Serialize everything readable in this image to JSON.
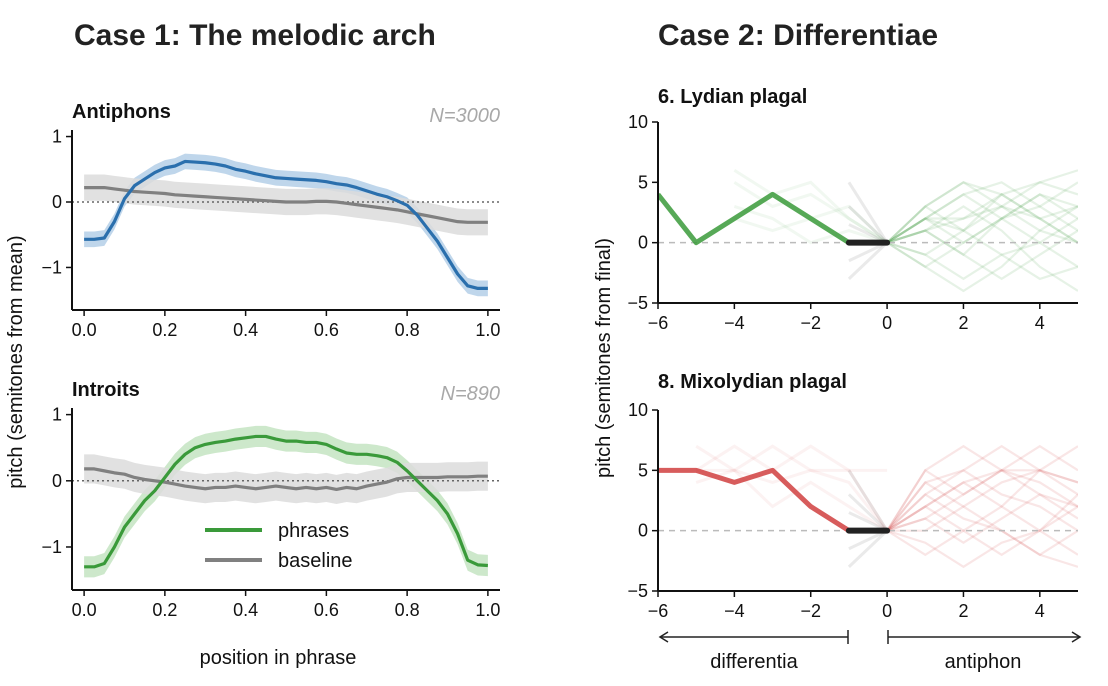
{
  "figure": {
    "case1_title": "Case 1: The melodic arch",
    "case2_title": "Case 2: Differentiae",
    "case1_ylabel": "pitch (semitones from mean)",
    "case1_xlabel": "position in phrase",
    "case2_ylabel": "pitch (semitones from final)",
    "span_differentia": "differentia",
    "span_antiphon": "antiphon"
  },
  "colors": {
    "blue": "#2a6fad",
    "blue_band": "#b4cfe8",
    "green": "#3a9a3a",
    "green_band": "#c4e4c2",
    "gray": "#808080",
    "gray_band": "#dcdcdc",
    "red": "#d04040",
    "black": "#222222"
  },
  "chart_data": [
    {
      "id": "antiphons",
      "type": "line",
      "title": "Antiphons",
      "annotation": "N=3000",
      "xlim": [
        -0.03,
        1.03
      ],
      "ylim": [
        -1.65,
        1.1
      ],
      "xticks": [
        0.0,
        0.2,
        0.4,
        0.6,
        0.8,
        1.0
      ],
      "xtick_labels": [
        "0.0",
        "0.2",
        "0.4",
        "0.6",
        "0.8",
        "1.0"
      ],
      "yticks": [
        1,
        0,
        -1
      ],
      "ytick_labels": [
        "1",
        "0",
        "−1"
      ],
      "reference_line": 0,
      "x": [
        0.0,
        0.025,
        0.05,
        0.075,
        0.1,
        0.125,
        0.15,
        0.175,
        0.2,
        0.225,
        0.25,
        0.275,
        0.3,
        0.325,
        0.35,
        0.375,
        0.4,
        0.425,
        0.45,
        0.475,
        0.5,
        0.525,
        0.55,
        0.575,
        0.6,
        0.625,
        0.65,
        0.675,
        0.7,
        0.725,
        0.75,
        0.775,
        0.8,
        0.825,
        0.85,
        0.875,
        0.9,
        0.925,
        0.95,
        0.975,
        1.0
      ],
      "series": [
        {
          "name": "phrases",
          "color_key": "blue",
          "band_color_key": "blue_band",
          "band_width": 0.12,
          "values": [
            -0.57,
            -0.57,
            -0.55,
            -0.3,
            0.05,
            0.25,
            0.35,
            0.45,
            0.52,
            0.55,
            0.62,
            0.61,
            0.6,
            0.58,
            0.55,
            0.5,
            0.47,
            0.43,
            0.4,
            0.37,
            0.36,
            0.35,
            0.34,
            0.33,
            0.31,
            0.28,
            0.26,
            0.22,
            0.17,
            0.12,
            0.08,
            0.02,
            -0.05,
            -0.2,
            -0.4,
            -0.6,
            -0.85,
            -1.1,
            -1.28,
            -1.32,
            -1.32
          ]
        },
        {
          "name": "baseline",
          "color_key": "gray",
          "band_color_key": "gray_band",
          "band_width": 0.2,
          "values": [
            0.22,
            0.22,
            0.22,
            0.2,
            0.18,
            0.16,
            0.15,
            0.14,
            0.13,
            0.11,
            0.1,
            0.09,
            0.08,
            0.07,
            0.06,
            0.05,
            0.04,
            0.03,
            0.02,
            0.01,
            0.0,
            0.0,
            0.0,
            0.01,
            0.01,
            0.0,
            -0.02,
            -0.04,
            -0.06,
            -0.08,
            -0.1,
            -0.12,
            -0.15,
            -0.18,
            -0.21,
            -0.24,
            -0.27,
            -0.3,
            -0.31,
            -0.31,
            -0.31
          ]
        }
      ]
    },
    {
      "id": "introits",
      "type": "line",
      "title": "Introits",
      "annotation": "N=890",
      "xlim": [
        -0.03,
        1.03
      ],
      "ylim": [
        -1.65,
        1.1
      ],
      "xticks": [
        0.0,
        0.2,
        0.4,
        0.6,
        0.8,
        1.0
      ],
      "xtick_labels": [
        "0.0",
        "0.2",
        "0.4",
        "0.6",
        "0.8",
        "1.0"
      ],
      "yticks": [
        1,
        0,
        -1
      ],
      "ytick_labels": [
        "1",
        "0",
        "−1"
      ],
      "reference_line": 0,
      "legend": [
        "phrases",
        "baseline"
      ],
      "x": [
        0.0,
        0.025,
        0.05,
        0.075,
        0.1,
        0.125,
        0.15,
        0.175,
        0.2,
        0.225,
        0.25,
        0.275,
        0.3,
        0.325,
        0.35,
        0.375,
        0.4,
        0.425,
        0.45,
        0.475,
        0.5,
        0.525,
        0.55,
        0.575,
        0.6,
        0.625,
        0.65,
        0.675,
        0.7,
        0.725,
        0.75,
        0.775,
        0.8,
        0.825,
        0.85,
        0.875,
        0.9,
        0.925,
        0.95,
        0.975,
        1.0
      ],
      "series": [
        {
          "name": "phrases",
          "color_key": "green",
          "band_color_key": "green_band",
          "band_width": 0.16,
          "values": [
            -1.3,
            -1.3,
            -1.25,
            -1.0,
            -0.7,
            -0.5,
            -0.3,
            -0.15,
            0.05,
            0.25,
            0.4,
            0.5,
            0.55,
            0.58,
            0.6,
            0.63,
            0.65,
            0.67,
            0.67,
            0.63,
            0.6,
            0.6,
            0.58,
            0.58,
            0.55,
            0.48,
            0.42,
            0.4,
            0.4,
            0.38,
            0.35,
            0.28,
            0.15,
            0.0,
            -0.15,
            -0.3,
            -0.5,
            -0.8,
            -1.2,
            -1.27,
            -1.28
          ]
        },
        {
          "name": "baseline",
          "color_key": "gray",
          "band_color_key": "gray_band",
          "band_width": 0.22,
          "values": [
            0.18,
            0.18,
            0.15,
            0.12,
            0.1,
            0.05,
            0.02,
            0.0,
            -0.02,
            -0.05,
            -0.08,
            -0.1,
            -0.12,
            -0.1,
            -0.1,
            -0.08,
            -0.1,
            -0.12,
            -0.1,
            -0.08,
            -0.1,
            -0.12,
            -0.1,
            -0.12,
            -0.1,
            -0.13,
            -0.1,
            -0.12,
            -0.08,
            -0.05,
            -0.02,
            0.03,
            0.05,
            0.05,
            0.05,
            0.05,
            0.06,
            0.06,
            0.06,
            0.07,
            0.07
          ]
        }
      ]
    },
    {
      "id": "lydian",
      "type": "line",
      "title": "6. Lydian plagal",
      "xlim": [
        -6,
        5
      ],
      "ylim": [
        -5,
        10
      ],
      "xticks": [
        -6,
        -4,
        -2,
        0,
        2,
        4
      ],
      "xtick_labels": [
        "−6",
        "−4",
        "−2",
        "0",
        "2",
        "4"
      ],
      "yticks": [
        10,
        5,
        0,
        -5
      ],
      "ytick_labels": [
        "10",
        "5",
        "0",
        "−5"
      ],
      "reference_line": 0,
      "color_key": "green",
      "differentia": {
        "x": [
          -6,
          -5,
          -3,
          -1
        ],
        "y": [
          4,
          0,
          4,
          0
        ]
      },
      "final": {
        "x": [
          -1,
          0
        ],
        "y": [
          0,
          0
        ]
      },
      "antiphon_traces": [
        [
          0,
          2,
          1,
          4,
          2,
          0
        ],
        [
          0,
          1,
          -1,
          2,
          3,
          5
        ],
        [
          0,
          -2,
          0,
          2,
          4,
          2
        ],
        [
          0,
          3,
          5,
          4,
          2,
          3
        ],
        [
          0,
          2,
          4,
          5,
          3,
          1
        ],
        [
          0,
          -1,
          -3,
          -1,
          0,
          2
        ],
        [
          0,
          1,
          3,
          1,
          -2,
          -4
        ],
        [
          0,
          2,
          2,
          4,
          5,
          4
        ],
        [
          0,
          -1,
          1,
          3,
          1,
          0
        ],
        [
          0,
          3,
          1,
          -1,
          -3,
          -2
        ],
        [
          0,
          2,
          4,
          2,
          0,
          -2
        ],
        [
          0,
          1,
          2,
          3,
          5,
          6
        ],
        [
          0,
          -2,
          -4,
          -2,
          1,
          3
        ],
        [
          0,
          2,
          0,
          2,
          4,
          3
        ],
        [
          0,
          1,
          -1,
          -3,
          -1,
          1
        ],
        [
          0,
          3,
          5,
          3,
          2,
          0
        ]
      ],
      "differentia_shadows": [
        [
          6,
          4,
          5,
          2,
          0
        ],
        [
          3,
          2,
          0,
          1,
          0
        ],
        [
          5,
          3,
          4,
          2,
          0
        ],
        [
          2,
          1,
          2,
          3,
          0
        ]
      ]
    },
    {
      "id": "mixolydian",
      "type": "line",
      "title": "8. Mixolydian plagal",
      "xlim": [
        -6,
        5
      ],
      "ylim": [
        -5,
        10
      ],
      "xticks": [
        -6,
        -4,
        -2,
        0,
        2,
        4
      ],
      "xtick_labels": [
        "−6",
        "−4",
        "−2",
        "0",
        "2",
        "4"
      ],
      "yticks": [
        10,
        5,
        0,
        -5
      ],
      "ytick_labels": [
        "10",
        "5",
        "0",
        "−5"
      ],
      "reference_line": 0,
      "color_key": "red",
      "differentia": {
        "x": [
          -6,
          -5,
          -4,
          -3,
          -2,
          -1
        ],
        "y": [
          5,
          5,
          4,
          5,
          2,
          0
        ]
      },
      "final": {
        "x": [
          -1,
          0
        ],
        "y": [
          0,
          0
        ]
      },
      "antiphon_traces": [
        [
          0,
          2,
          4,
          2,
          0,
          2
        ],
        [
          0,
          3,
          5,
          7,
          5,
          4
        ],
        [
          0,
          -1,
          -3,
          -1,
          0,
          -2
        ],
        [
          0,
          5,
          3,
          5,
          4,
          2
        ],
        [
          0,
          2,
          0,
          -2,
          0,
          3
        ],
        [
          0,
          4,
          5,
          3,
          2,
          0
        ],
        [
          0,
          1,
          3,
          5,
          7,
          5
        ],
        [
          0,
          -2,
          0,
          2,
          5,
          4
        ],
        [
          0,
          3,
          1,
          0,
          -2,
          -3
        ],
        [
          0,
          5,
          7,
          5,
          3,
          2
        ],
        [
          0,
          2,
          4,
          5,
          5,
          3
        ],
        [
          0,
          0,
          2,
          0,
          -2,
          0
        ],
        [
          0,
          4,
          2,
          4,
          5,
          7
        ],
        [
          0,
          1,
          -1,
          1,
          3,
          1
        ]
      ],
      "differentia_shadows": [
        [
          5,
          5,
          7,
          5,
          4,
          0
        ],
        [
          7,
          5,
          4,
          5,
          5,
          0
        ],
        [
          4,
          5,
          2,
          4,
          2,
          0
        ],
        [
          5,
          7,
          5,
          7,
          5,
          5
        ]
      ]
    }
  ]
}
